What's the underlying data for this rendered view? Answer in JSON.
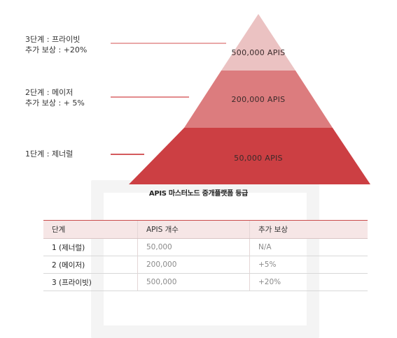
{
  "tiers": [
    {
      "level": "3단계 : 프라이빗",
      "bonus": "추가 보상 : +20%",
      "amount": "500,000 APIS",
      "color": "#ebc2c2",
      "line_color": "#e9a8a8"
    },
    {
      "level": "2단계 : 메이저",
      "bonus": "추가 보상 : + 5%",
      "amount": "200,000 APIS",
      "color": "#dc7c7e",
      "line_color": "#e38b8d"
    },
    {
      "level": "1단계 : 제너럴",
      "bonus": "",
      "amount": "50,000 APIS",
      "color": "#cc3f43",
      "line_color": "#d45a5d"
    }
  ],
  "caption": "APIS 마스터노드 중개플랫폼 등급",
  "table": {
    "header_color": "#f6e6e6",
    "accent_color": "#c94a4a",
    "headers": [
      "단계",
      "APIS 개수",
      "추가 보상"
    ],
    "rows": [
      [
        "1 (제너럴)",
        "50,000",
        "N/A"
      ],
      [
        "2 (메이저)",
        "200,000",
        "+5%"
      ],
      [
        "3 (프라이빗)",
        "500,000",
        "+20%"
      ]
    ]
  }
}
